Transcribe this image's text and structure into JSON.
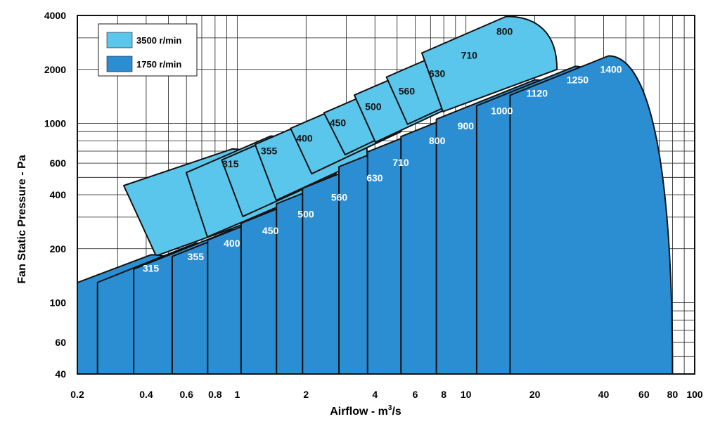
{
  "chart_data": {
    "type": "area",
    "xlabel": "Airflow - m",
    "xlabel_sup": "3",
    "xlabel_suffix": "/s",
    "ylabel": "Fan Static Pressure - Pa",
    "x_scale": "log",
    "y_scale": "log",
    "xlim": [
      0.2,
      100
    ],
    "ylim": [
      40,
      4000
    ],
    "x_ticks": [
      0.2,
      0.4,
      0.6,
      0.8,
      1,
      2,
      4,
      6,
      8,
      10,
      20,
      40,
      60,
      80,
      100
    ],
    "x_tick_labels": [
      "0.2",
      "0.4",
      "0.6",
      "0.8",
      "1",
      "2",
      "4",
      "6",
      "8",
      "10",
      "20",
      "40",
      "60",
      "80",
      "100"
    ],
    "y_ticks": [
      40,
      60,
      100,
      200,
      400,
      600,
      1000,
      2000,
      4000
    ],
    "y_tick_labels": [
      "40",
      "60",
      "100",
      "200",
      "400",
      "600",
      "1000",
      "2000",
      "4000"
    ],
    "grid": true,
    "legend_position": "top-left",
    "series": [
      {
        "name": "3500 r/min",
        "color": "#5bc6ec",
        "curves": [
          {
            "size": "315",
            "peak_airflow": 0.95,
            "peak_pressure": 720,
            "max_airflow": 1.5,
            "min_pressure": 320
          },
          {
            "size": "355",
            "peak_airflow": 1.4,
            "peak_pressure": 850,
            "max_airflow": 2.0,
            "min_pressure": 400
          },
          {
            "size": "400",
            "peak_airflow": 2.0,
            "peak_pressure": 1000,
            "max_airflow": 2.7,
            "min_pressure": 520
          },
          {
            "size": "450",
            "peak_airflow": 2.8,
            "peak_pressure": 1220,
            "max_airflow": 3.7,
            "min_pressure": 640
          },
          {
            "size": "500",
            "peak_airflow": 4.0,
            "peak_pressure": 1500,
            "max_airflow": 5.2,
            "min_pressure": 900
          },
          {
            "size": "560",
            "peak_airflow": 5.6,
            "peak_pressure": 1830,
            "max_airflow": 7.2,
            "min_pressure": 1150
          },
          {
            "size": "630",
            "peak_airflow": 7.6,
            "peak_pressure": 2300,
            "max_airflow": 10.0,
            "min_pressure": 1350
          },
          {
            "size": "710",
            "peak_airflow": 10.5,
            "peak_pressure": 2900,
            "max_airflow": 14.0,
            "min_pressure": 1700
          },
          {
            "size": "800",
            "peak_airflow": 15.0,
            "peak_pressure": 3950,
            "max_airflow": 25.0,
            "min_pressure": 2000
          }
        ]
      },
      {
        "name": "1750 r/min",
        "color": "#2b8ed3",
        "curves": [
          {
            "size": "315",
            "peak_airflow": 0.42,
            "peak_pressure": 185,
            "max_airflow": 0.8,
            "min_pressure": 40
          },
          {
            "size": "355",
            "peak_airflow": 0.66,
            "peak_pressure": 215,
            "max_airflow": 1.3,
            "min_pressure": 40
          },
          {
            "size": "400",
            "peak_airflow": 0.95,
            "peak_pressure": 255,
            "max_airflow": 2.0,
            "min_pressure": 40
          },
          {
            "size": "450",
            "peak_airflow": 1.4,
            "peak_pressure": 300,
            "max_airflow": 2.8,
            "min_pressure": 40
          },
          {
            "size": "500",
            "peak_airflow": 2.0,
            "peak_pressure": 370,
            "max_airflow": 3.9,
            "min_pressure": 40
          },
          {
            "size": "560",
            "peak_airflow": 2.8,
            "peak_pressure": 460,
            "max_airflow": 5.5,
            "min_pressure": 40
          },
          {
            "size": "630",
            "peak_airflow": 4.0,
            "peak_pressure": 590,
            "max_airflow": 7.5,
            "min_pressure": 40
          },
          {
            "size": "710",
            "peak_airflow": 5.2,
            "peak_pressure": 720,
            "max_airflow": 10.5,
            "min_pressure": 40
          },
          {
            "size": "800",
            "peak_airflow": 7.5,
            "peak_pressure": 950,
            "max_airflow": 15.0,
            "min_pressure": 40
          },
          {
            "size": "900",
            "peak_airflow": 10.0,
            "peak_pressure": 1150,
            "max_airflow": 21.0,
            "min_pressure": 40
          },
          {
            "size": "1000",
            "peak_airflow": 14.0,
            "peak_pressure": 1400,
            "max_airflow": 30.0,
            "min_pressure": 40
          },
          {
            "size": "1120",
            "peak_airflow": 20.0,
            "peak_pressure": 1750,
            "max_airflow": 42.0,
            "min_pressure": 40
          },
          {
            "size": "1250",
            "peak_airflow": 30.0,
            "peak_pressure": 2080,
            "max_airflow": 58.0,
            "min_pressure": 40
          },
          {
            "size": "1400",
            "peak_airflow": 42.0,
            "peak_pressure": 2380,
            "max_airflow": 80.0,
            "min_pressure": 40
          }
        ]
      }
    ]
  }
}
